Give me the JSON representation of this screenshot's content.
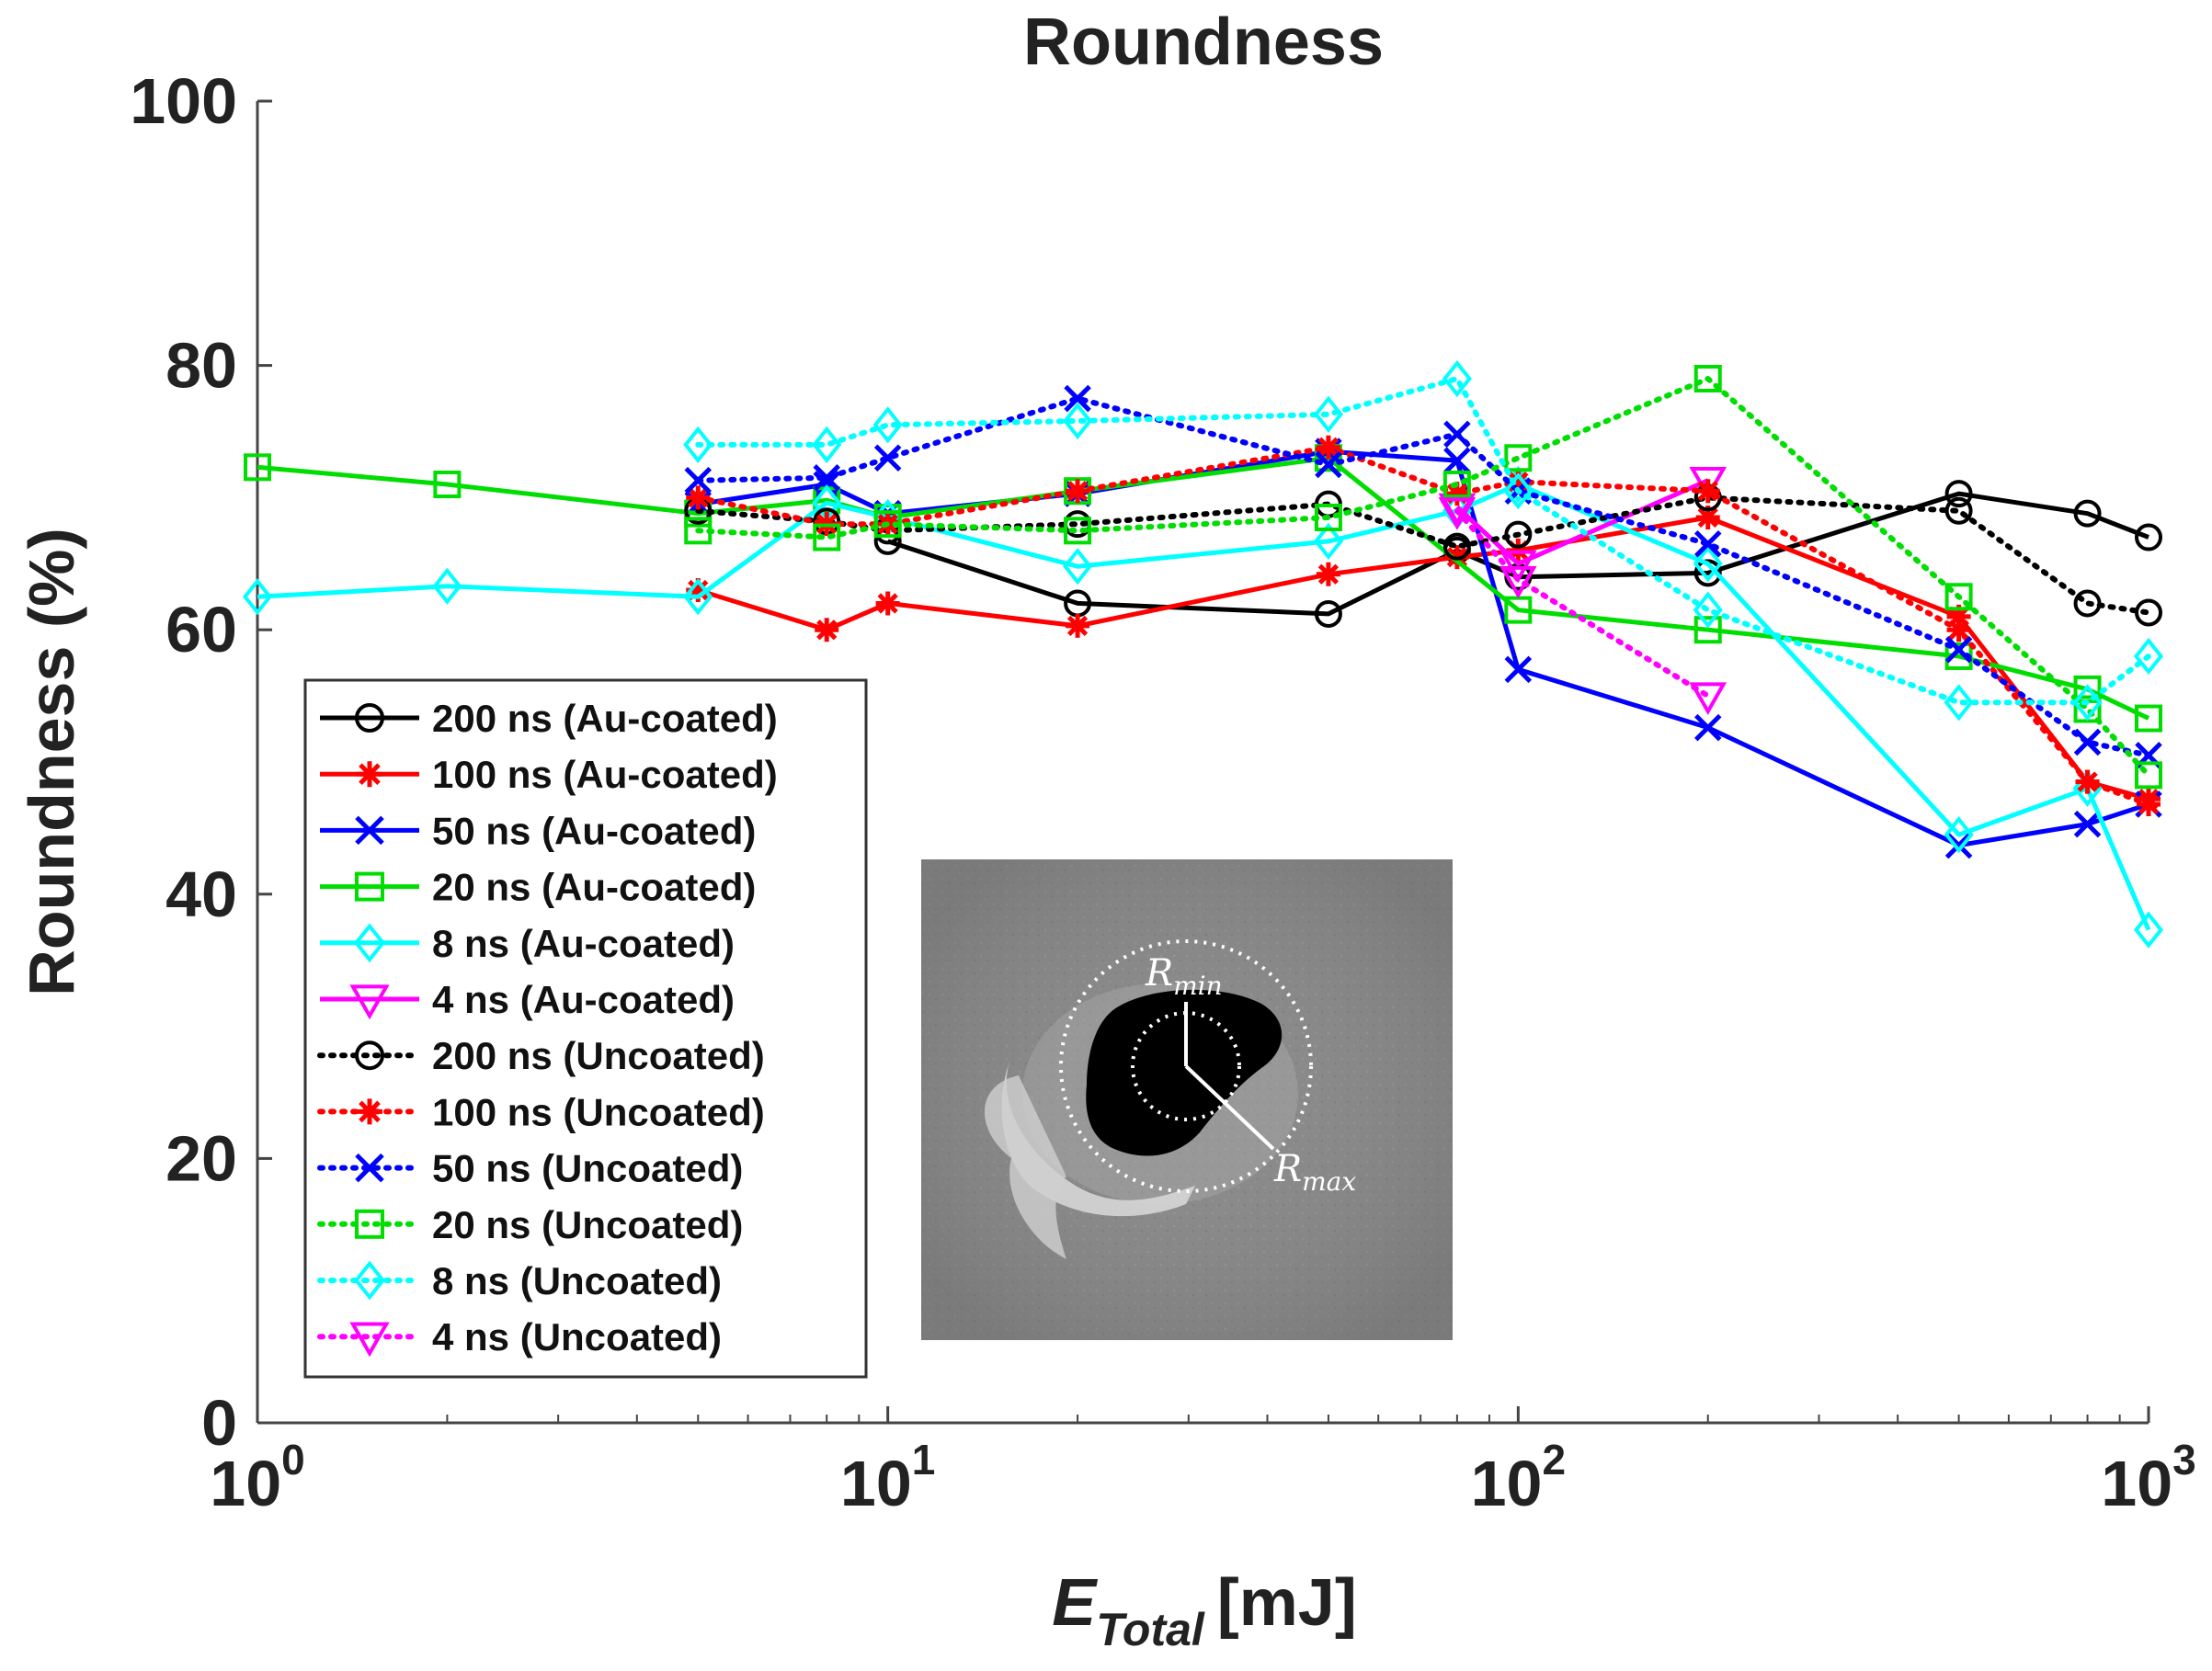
{
  "chart_data": {
    "type": "line",
    "title": "Roundness",
    "xlabel": {
      "main": "E",
      "sub": "Total",
      "unit": "[mJ]"
    },
    "ylabel": "Roundness (%)",
    "xscale": "log",
    "xlim": [
      1,
      1000
    ],
    "ylim": [
      0,
      100
    ],
    "x_ticks": [
      {
        "base": "10",
        "exp": "0"
      },
      {
        "base": "10",
        "exp": "1"
      },
      {
        "base": "10",
        "exp": "2"
      },
      {
        "base": "10",
        "exp": "3"
      }
    ],
    "y_ticks": [
      "0",
      "20",
      "40",
      "60",
      "80",
      "100"
    ],
    "legend_position": "lower-left",
    "inset": {
      "label_min": "R",
      "sub_min": "min",
      "label_max": "R",
      "sub_max": "max"
    },
    "series": [
      {
        "name": "200 ns (Au-coated)",
        "color": "#000000",
        "style": "solid",
        "marker": "circle",
        "x": [
          10,
          20,
          50,
          80,
          100,
          200,
          500,
          800,
          1000
        ],
        "y": [
          66.7,
          62.0,
          61.2,
          66.0,
          64.0,
          64.3,
          70.3,
          68.8,
          67.0
        ]
      },
      {
        "name": "100 ns (Au-coated)",
        "color": "#ff0000",
        "style": "solid",
        "marker": "asterisk",
        "x": [
          5,
          8,
          10,
          20,
          50,
          80,
          100,
          200,
          500,
          800,
          1000
        ],
        "y": [
          63.0,
          60.0,
          62.0,
          60.3,
          64.2,
          65.5,
          66.0,
          68.5,
          61.0,
          48.5,
          47.2
        ]
      },
      {
        "name": "50 ns (Au-coated)",
        "color": "#0000ff",
        "style": "solid",
        "marker": "x",
        "x": [
          5,
          8,
          10,
          20,
          50,
          80,
          100,
          200,
          500,
          800,
          1000
        ],
        "y": [
          69.5,
          71.0,
          68.8,
          70.3,
          73.5,
          72.8,
          57.0,
          52.6,
          43.7,
          45.3,
          46.8
        ]
      },
      {
        "name": "20 ns (Au-coated)",
        "color": "#00dd00",
        "style": "solid",
        "marker": "square",
        "x": [
          1,
          2,
          5,
          8,
          10,
          20,
          50,
          100,
          200,
          500,
          800,
          1000
        ],
        "y": [
          72.3,
          71.0,
          68.8,
          69.8,
          68.5,
          70.5,
          73.0,
          61.5,
          60.0,
          58.0,
          55.5,
          53.3
        ]
      },
      {
        "name": "8 ns (Au-coated)",
        "color": "#00ffff",
        "style": "solid",
        "marker": "diamond",
        "x": [
          1,
          2,
          5,
          8,
          10,
          20,
          50,
          80,
          100,
          200,
          500,
          800,
          1000
        ],
        "y": [
          62.5,
          63.3,
          62.5,
          69.6,
          68.5,
          64.8,
          66.7,
          69.0,
          71.0,
          65.0,
          44.5,
          48.0,
          37.3
        ]
      },
      {
        "name": "4 ns (Au-coated)",
        "color": "#ff00ff",
        "style": "solid",
        "marker": "triangle-down",
        "x": [
          80,
          100,
          200
        ],
        "y": [
          69.3,
          65.0,
          71.3
        ]
      },
      {
        "name": "200 ns (Uncoated)",
        "color": "#000000",
        "style": "dotted",
        "marker": "circle",
        "x": [
          5,
          8,
          10,
          20,
          50,
          80,
          100,
          200,
          500,
          800,
          1000
        ],
        "y": [
          69.0,
          68.2,
          67.5,
          68.0,
          69.5,
          66.3,
          67.2,
          70.0,
          69.0,
          62.0,
          61.3
        ]
      },
      {
        "name": "100 ns (Uncoated)",
        "color": "#ff0000",
        "style": "dotted",
        "marker": "asterisk",
        "x": [
          5,
          8,
          10,
          20,
          50,
          80,
          100,
          200,
          500,
          800,
          1000
        ],
        "y": [
          70.0,
          68.0,
          68.0,
          70.5,
          73.8,
          70.3,
          71.2,
          70.5,
          60.0,
          48.5,
          46.8
        ]
      },
      {
        "name": "50 ns (Uncoated)",
        "color": "#0000ff",
        "style": "dotted",
        "marker": "x",
        "x": [
          5,
          8,
          10,
          20,
          50,
          80,
          100,
          200,
          500,
          800,
          1000
        ],
        "y": [
          71.3,
          71.5,
          73.0,
          77.5,
          72.5,
          74.8,
          70.5,
          66.5,
          58.5,
          51.5,
          50.5
        ]
      },
      {
        "name": "20 ns (Uncoated)",
        "color": "#00dd00",
        "style": "dotted",
        "marker": "square",
        "x": [
          5,
          8,
          10,
          20,
          50,
          80,
          100,
          200,
          500,
          800,
          1000
        ],
        "y": [
          67.5,
          67.0,
          68.0,
          67.5,
          68.5,
          71.0,
          73.0,
          79.0,
          62.5,
          54.0,
          49.0
        ]
      },
      {
        "name": "8 ns (Uncoated)",
        "color": "#00ffff",
        "style": "dotted",
        "marker": "diamond",
        "x": [
          5,
          8,
          10,
          20,
          50,
          80,
          100,
          200,
          500,
          800,
          1000
        ],
        "y": [
          74.0,
          74.0,
          75.5,
          75.8,
          76.3,
          79.0,
          70.5,
          61.5,
          54.5,
          54.5,
          58.0
        ]
      },
      {
        "name": "4 ns (Uncoated)",
        "color": "#ff00ff",
        "style": "dotted",
        "marker": "triangle-down",
        "x": [
          80,
          100,
          200
        ],
        "y": [
          69.0,
          63.8,
          55.0
        ]
      }
    ]
  }
}
